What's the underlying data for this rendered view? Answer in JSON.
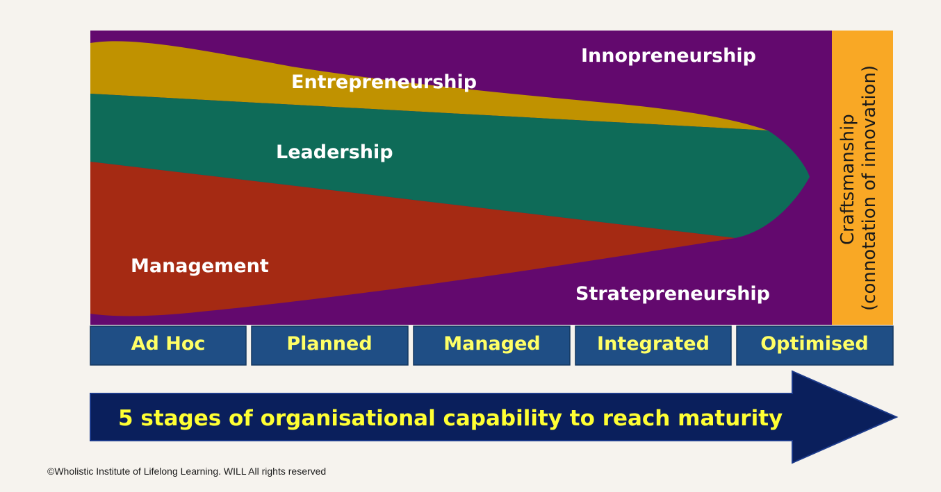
{
  "diagram": {
    "bands": {
      "innopreneurship": "Innopreneurship",
      "entrepreneurship": "Entrepreneurship",
      "leadership": "Leadership",
      "management": "Management",
      "stratepreneurship": "Stratepreneurship"
    },
    "craftsmanship": {
      "line1": "Craftsmanship",
      "line2": "(connotation  of innovation)"
    },
    "stages": [
      "Ad Hoc",
      "Planned",
      "Managed",
      "Integrated",
      "Optimised"
    ],
    "arrow_text": "5 stages of organisational capability to reach maturity",
    "copyright": "©Wholistic Institute of Lifelong Learning. WILL All rights reserved",
    "colors": {
      "background": "#f6f3ee",
      "purple": "#63096e",
      "gold": "#c09200",
      "green": "#0e6b58",
      "red": "#a52a13",
      "orange": "#f9a825",
      "stage_box": "#1f4e85",
      "stage_text": "#ffff66",
      "arrow": "#0a1f5c",
      "arrow_text": "#ffff33"
    }
  }
}
